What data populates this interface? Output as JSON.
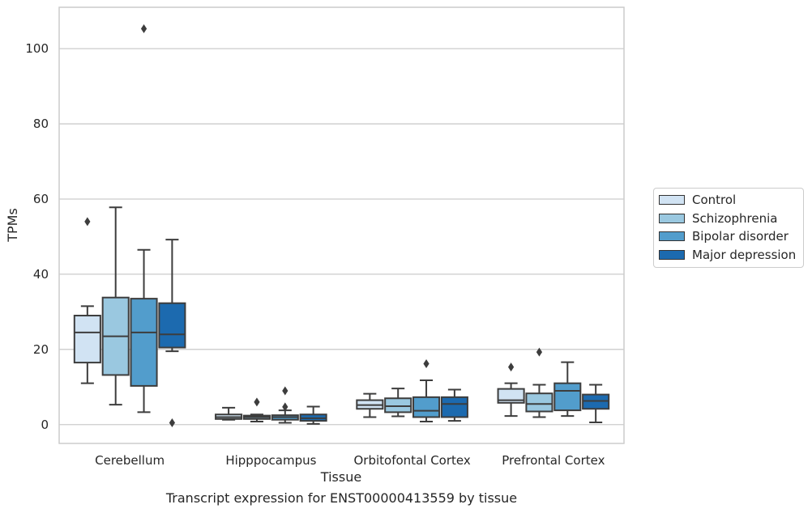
{
  "chart_data": {
    "type": "box",
    "xlabel": "Tissue",
    "ylabel": "TPMs",
    "caption": "Transcript expression for ENST00000413559 by tissue",
    "categories": [
      "Cerebellum",
      "Hipppocampus",
      "Orbitofontal Cortex",
      "Prefrontal Cortex"
    ],
    "ylim": [
      -5,
      111
    ],
    "yticks": [
      0,
      20,
      40,
      60,
      80,
      100
    ],
    "grid": true,
    "legend_position": "right",
    "series": [
      {
        "name": "Control",
        "color": "#d1e3f3",
        "boxes": [
          {
            "min": 11,
            "q1": 16.5,
            "median": 24.5,
            "q3": 29,
            "max": 31.5,
            "outliers": [
              54
            ]
          },
          {
            "min": 1.3,
            "q1": 1.5,
            "median": 2,
            "q3": 2.7,
            "max": 4.5,
            "outliers": []
          },
          {
            "min": 2,
            "q1": 4.2,
            "median": 5.2,
            "q3": 6.5,
            "max": 8.2,
            "outliers": []
          },
          {
            "min": 2.3,
            "q1": 5.8,
            "median": 6.5,
            "q3": 9.5,
            "max": 11,
            "outliers": [
              15.3
            ]
          }
        ]
      },
      {
        "name": "Schizophrenia",
        "color": "#9ac8e0",
        "boxes": [
          {
            "min": 5.3,
            "q1": 13.2,
            "median": 23.5,
            "q3": 33.8,
            "max": 57.8,
            "outliers": []
          },
          {
            "min": 0.8,
            "q1": 1.5,
            "median": 2,
            "q3": 2.4,
            "max": 2.7,
            "outliers": [
              6
            ]
          },
          {
            "min": 2.2,
            "q1": 3.3,
            "median": 4.9,
            "q3": 7,
            "max": 9.6,
            "outliers": []
          },
          {
            "min": 2,
            "q1": 3.5,
            "median": 5.5,
            "q3": 8.3,
            "max": 10.6,
            "outliers": [
              19.3
            ]
          }
        ]
      },
      {
        "name": "Bipolar disorder",
        "color": "#529dcc",
        "boxes": [
          {
            "min": 3.3,
            "q1": 10.3,
            "median": 24.5,
            "q3": 33.5,
            "max": 46.5,
            "outliers": [
              105.3
            ]
          },
          {
            "min": 0.5,
            "q1": 1.3,
            "median": 2,
            "q3": 2.5,
            "max": 3.8,
            "outliers": [
              4.7,
              9
            ]
          },
          {
            "min": 0.8,
            "q1": 2,
            "median": 3.7,
            "q3": 7.3,
            "max": 11.8,
            "outliers": [
              16.2
            ]
          },
          {
            "min": 2.3,
            "q1": 3.8,
            "median": 9,
            "q3": 11,
            "max": 16.6,
            "outliers": []
          }
        ]
      },
      {
        "name": "Major depression",
        "color": "#1c6aaf",
        "boxes": [
          {
            "min": 19.5,
            "q1": 20.5,
            "median": 24,
            "q3": 32.3,
            "max": 49.2,
            "outliers": [
              0.5
            ]
          },
          {
            "min": 0.2,
            "q1": 1,
            "median": 1.7,
            "q3": 2.7,
            "max": 4.8,
            "outliers": []
          },
          {
            "min": 1,
            "q1": 2,
            "median": 5.5,
            "q3": 7.3,
            "max": 9.3,
            "outliers": []
          },
          {
            "min": 0.6,
            "q1": 4.2,
            "median": 6.3,
            "q3": 8,
            "max": 10.6,
            "outliers": []
          }
        ]
      }
    ]
  }
}
